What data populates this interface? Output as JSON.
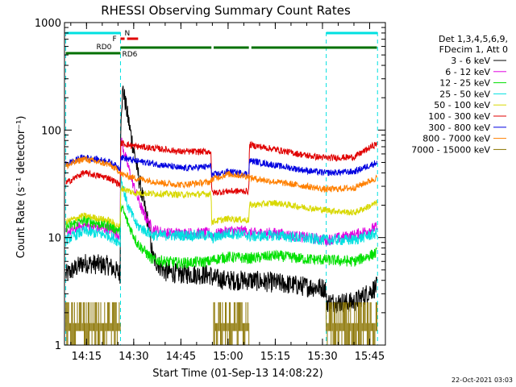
{
  "chart_data": {
    "type": "line",
    "title": "RHESSI Observing Summary Count Rates",
    "xlabel": "Start Time (01-Sep-13 14:08:22)",
    "ylabel": "Count Rate (s⁻¹ detector⁻¹)",
    "y_scale": "log",
    "ylim": [
      1,
      1000
    ],
    "xlim": [
      8,
      110
    ],
    "x_unit": "minutes after 14:00 UT",
    "x_ticks": [
      {
        "value": 15,
        "label": "14:15"
      },
      {
        "value": 30,
        "label": "14:30"
      },
      {
        "value": 45,
        "label": "14:45"
      },
      {
        "value": 60,
        "label": "15:00"
      },
      {
        "value": 75,
        "label": "15:15"
      },
      {
        "value": 90,
        "label": "15:30"
      },
      {
        "value": 105,
        "label": "15:45"
      }
    ],
    "y_ticks": [
      {
        "value": 1,
        "label": "1"
      },
      {
        "value": 10,
        "label": "10"
      },
      {
        "value": 100,
        "label": "100"
      },
      {
        "value": 1000,
        "label": "1000"
      }
    ],
    "legend_header": [
      "Det 1,3,4,5,6,9,",
      "FDecim 1, Att 0"
    ],
    "legend_position": "right",
    "footer_date": "22-Oct-2021 03:03",
    "flag_labels": {
      "night": "N",
      "flare": "F",
      "rd0": "RD0",
      "rd6": "RD6"
    },
    "night_intervals": [
      [
        8.4,
        25.8
      ],
      [
        91.2,
        107.5
      ]
    ],
    "flare_intervals": [
      [
        25.8,
        27.1
      ],
      [
        27.9,
        31.4
      ]
    ],
    "rd0_intervals": [
      [
        8.4,
        25.8
      ]
    ],
    "rd6_intervals": [
      [
        25.8,
        54.7
      ],
      [
        55.4,
        66.6
      ],
      [
        67.4,
        107.3
      ]
    ],
    "series": [
      {
        "name": "3 - 6 keV",
        "color": "#000000",
        "x": [
          8.4,
          14,
          22,
          25.7,
          25.9,
          26.6,
          29,
          31,
          33,
          35,
          36,
          40,
          45,
          54.6,
          54.8,
          60,
          66.6,
          66.8,
          75,
          85,
          91,
          91.2,
          100,
          107.3
        ],
        "y": [
          4.5,
          5.8,
          5.5,
          4.6,
          145,
          240,
          95,
          45,
          22,
          12,
          6.5,
          4.8,
          4.6,
          4.5,
          4.2,
          4.0,
          4.0,
          4.0,
          3.8,
          3.5,
          3.4,
          2.5,
          2.5,
          3.5
        ]
      },
      {
        "name": "6 - 12 keV",
        "color": "#e000e0",
        "x": [
          8.4,
          14,
          22,
          25.7,
          25.9,
          27,
          30,
          33,
          36,
          40,
          45,
          54.6,
          54.8,
          60,
          66.6,
          66.8,
          75,
          85,
          91,
          91.2,
          100,
          107.3
        ],
        "y": [
          11,
          13,
          12,
          10.5,
          85,
          62,
          30,
          17,
          12,
          11,
          11,
          11,
          10.5,
          11.5,
          11.5,
          11,
          11,
          10,
          9.5,
          9.5,
          10.5,
          12.5
        ]
      },
      {
        "name": "12 - 25 keV",
        "color": "#00e000",
        "x": [
          8.4,
          14,
          22,
          25.7,
          25.9,
          28,
          31,
          36,
          45,
          54.6,
          54.8,
          60,
          66.6,
          66.8,
          75,
          85,
          91,
          91.2,
          100,
          107.3
        ],
        "y": [
          12.5,
          14.5,
          13,
          11.5,
          20,
          14,
          9,
          6.2,
          5.8,
          6,
          6.2,
          6.6,
          6.4,
          6.4,
          6.8,
          6.3,
          6.2,
          6.2,
          6.0,
          7.2
        ]
      },
      {
        "name": "25 - 50 keV",
        "color": "#00e0e0",
        "x": [
          8.4,
          14,
          22,
          25.7,
          25.9,
          28,
          31,
          36,
          45,
          54.6,
          54.8,
          60,
          66.6,
          66.8,
          75,
          85,
          91,
          91.2,
          100,
          107.3
        ],
        "y": [
          9.5,
          11.5,
          10.5,
          9,
          36,
          20,
          13,
          10.5,
          10.5,
          10.5,
          9.8,
          11,
          10.5,
          10.2,
          10.5,
          9.8,
          9.5,
          9.5,
          9.5,
          11
        ]
      },
      {
        "name": "50 - 100 keV",
        "color": "#d8d800",
        "x": [
          8.4,
          14,
          22,
          25.7,
          25.9,
          30,
          40,
          45,
          54.6,
          54.8,
          60,
          66.6,
          66.8,
          75,
          85,
          91,
          91.2,
          100,
          107.3
        ],
        "y": [
          14,
          16,
          14.5,
          12.5,
          29,
          26,
          25.5,
          25,
          25.5,
          14,
          15,
          14.5,
          20,
          21,
          19,
          18,
          18,
          17,
          21
        ]
      },
      {
        "name": "100 - 300 keV",
        "color": "#e00000",
        "x": [
          8.4,
          14,
          22,
          25.7,
          25.9,
          30,
          40,
          45,
          54.6,
          54.8,
          60,
          66.6,
          66.8,
          75,
          85,
          91,
          91.2,
          100,
          107.3
        ],
        "y": [
          32,
          40,
          36,
          31,
          76,
          71,
          66,
          63,
          63,
          26,
          27,
          27,
          73,
          66,
          58,
          55,
          55,
          56,
          75
        ]
      },
      {
        "name": "300 - 800 keV",
        "color": "#0000e0",
        "x": [
          8.4,
          14,
          22,
          25.7,
          25.9,
          30,
          40,
          45,
          54.6,
          54.8,
          60,
          66.6,
          66.8,
          75,
          85,
          91,
          91.2,
          100,
          107.3
        ],
        "y": [
          48,
          56,
          51,
          44,
          56,
          52,
          47,
          44,
          46,
          38,
          41,
          39,
          52,
          47,
          42,
          40,
          40,
          41,
          50
        ]
      },
      {
        "name": "800 - 7000 keV",
        "color": "#ff8000",
        "x": [
          8.4,
          14,
          22,
          25.7,
          25.9,
          30,
          40,
          45,
          54.6,
          54.8,
          60,
          66.6,
          66.8,
          75,
          85,
          91,
          91.2,
          100,
          107.3
        ],
        "y": [
          46,
          54,
          48,
          41,
          39,
          36,
          32,
          31,
          33,
          35,
          39,
          37,
          36,
          33,
          30,
          28,
          28,
          29,
          36
        ]
      },
      {
        "name": "7000 - 15000 keV",
        "color": "#8b7500",
        "x": [
          8.4,
          25.7,
          55.4,
          66.6,
          91.2,
          107.3
        ],
        "y": [
          2.2,
          2.2,
          2.2,
          2.2,
          2.2,
          2.2
        ],
        "segments": [
          [
            8.4,
            25.7
          ],
          [
            55.4,
            66.6
          ],
          [
            91.2,
            107.3
          ]
        ]
      }
    ]
  }
}
